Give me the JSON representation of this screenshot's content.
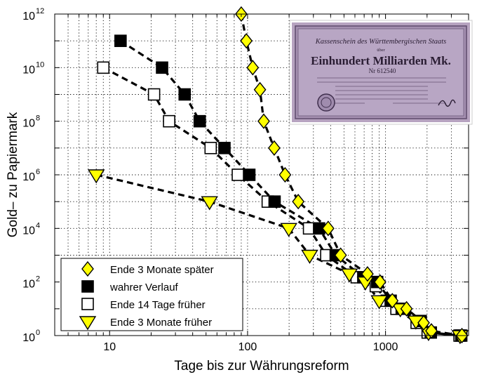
{
  "chart_data": {
    "type": "scatter",
    "xlabel": "Tage bis zur Währungsreform",
    "ylabel": "Gold– zu Papiermark",
    "x_scale": "log",
    "y_scale": "log",
    "xlim": [
      4,
      4000
    ],
    "ylim": [
      1,
      1000000000000
    ],
    "grid": true,
    "legend_position": "bottom-left",
    "x_ticks": [
      {
        "value": 10,
        "label": "10"
      },
      {
        "value": 100,
        "label": "100"
      },
      {
        "value": 1000,
        "label": "1000"
      }
    ],
    "y_ticks": [
      {
        "value": 1,
        "base": "10",
        "exp": "0"
      },
      {
        "value": 100,
        "base": "10",
        "exp": "2"
      },
      {
        "value": 10000,
        "base": "10",
        "exp": "4"
      },
      {
        "value": 1000000,
        "base": "10",
        "exp": "6"
      },
      {
        "value": 100000000,
        "base": "10",
        "exp": "8"
      },
      {
        "value": 10000000000,
        "base": "10",
        "exp": "10"
      },
      {
        "value": 1000000000000,
        "base": "10",
        "exp": "12"
      }
    ],
    "series": [
      {
        "name": "Ende 3 Monate später",
        "marker": "diamond",
        "color": "#ffff00",
        "points": [
          [
            90,
            1000000000000.0
          ],
          [
            98,
            100000000000.0
          ],
          [
            109,
            10000000000.0
          ],
          [
            123,
            1500000000.0
          ],
          [
            131,
            100000000.0
          ],
          [
            156,
            10000000.0
          ],
          [
            187,
            1000000.0
          ],
          [
            233,
            100000.0
          ],
          [
            384,
            10000.0
          ],
          [
            473,
            1000.0
          ],
          [
            740,
            200.0
          ],
          [
            913,
            100.0
          ],
          [
            1120,
            20.0
          ],
          [
            1420,
            10.0
          ],
          [
            1890,
            3
          ],
          [
            2150,
            1.5
          ],
          [
            3580,
            1
          ]
        ]
      },
      {
        "name": "wahrer Verlauf",
        "marker": "square",
        "color": "#000000",
        "points": [
          [
            12,
            100000000000.0
          ],
          [
            24,
            10000000000.0
          ],
          [
            35,
            1000000000.0
          ],
          [
            45,
            100000000.0
          ],
          [
            68,
            10000000.0
          ],
          [
            103,
            1000000.0
          ],
          [
            157,
            100000.0
          ],
          [
            330,
            10000.0
          ],
          [
            435,
            1000.0
          ],
          [
            690,
            150.0
          ],
          [
            870,
            100.0
          ],
          [
            1090,
            20.0
          ],
          [
            1310,
            10.0
          ],
          [
            1800,
            3.5
          ],
          [
            2130,
            1.3
          ],
          [
            3540,
            1
          ]
        ]
      },
      {
        "name": "Ende 14 Tage früher",
        "marker": "square",
        "color": "#ffffff",
        "points": [
          [
            9,
            10000000000.0
          ],
          [
            21,
            1000000000.0
          ],
          [
            27,
            100000000.0
          ],
          [
            54,
            10000000.0
          ],
          [
            85,
            1000000.0
          ],
          [
            140,
            100000.0
          ],
          [
            279,
            10000.0
          ],
          [
            372,
            1000.0
          ],
          [
            618,
            150.0
          ],
          [
            850,
            70.0
          ],
          [
            1020,
            20.0
          ],
          [
            1200,
            10.0
          ],
          [
            1680,
            3
          ],
          [
            2020,
            1.3
          ],
          [
            3440,
            1
          ]
        ]
      },
      {
        "name": "Ende 3 Monate früher",
        "marker": "triangle-down",
        "color": "#ffff00",
        "points": [
          [
            8,
            1000000.0
          ],
          [
            53,
            100000.0
          ],
          [
            199,
            10000.0
          ],
          [
            282,
            1000.0
          ],
          [
            547,
            200.0
          ],
          [
            714,
            100.0
          ],
          [
            900,
            20.0
          ],
          [
            1280,
            10.0
          ],
          [
            1660,
            3.5
          ],
          [
            2050,
            1.3
          ],
          [
            3470,
            1
          ]
        ]
      }
    ]
  },
  "banknote": {
    "line1": "Kassenschein des Württembergischen Staats",
    "line2": "über",
    "line3": "Einhundert Milliarden Mk.",
    "serial": "Nr 612540"
  }
}
